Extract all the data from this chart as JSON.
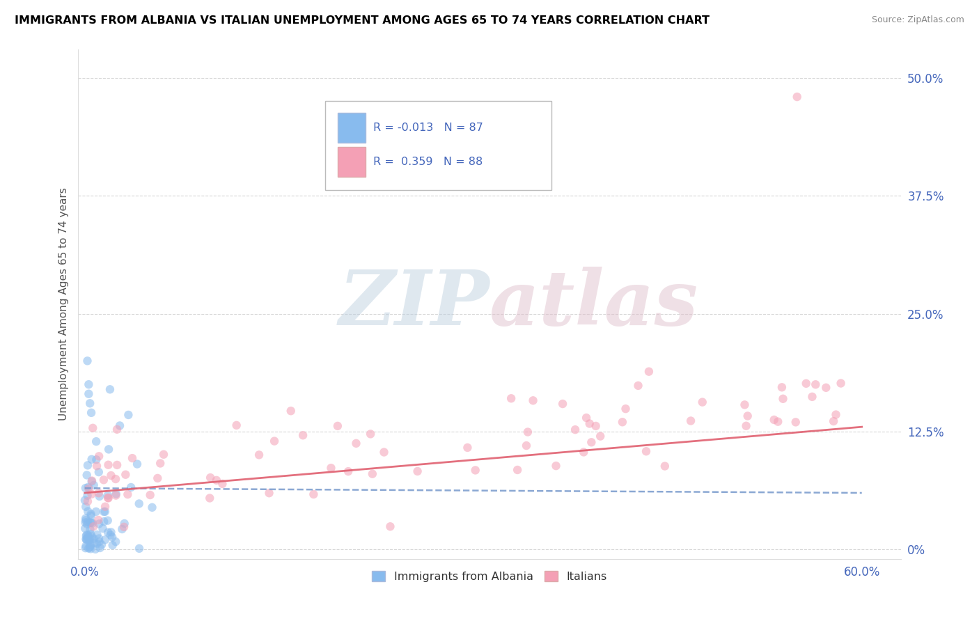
{
  "title": "IMMIGRANTS FROM ALBANIA VS ITALIAN UNEMPLOYMENT AMONG AGES 65 TO 74 YEARS CORRELATION CHART",
  "source": "Source: ZipAtlas.com",
  "ylabel": "Unemployment Among Ages 65 to 74 years",
  "legend_labels": [
    "Immigrants from Albania",
    "Italians"
  ],
  "r_values": [
    -0.013,
    0.359
  ],
  "n_values": [
    87,
    88
  ],
  "xlim": [
    -0.005,
    0.63
  ],
  "ylim": [
    -0.01,
    0.53
  ],
  "yticks": [
    0.0,
    0.125,
    0.25,
    0.375,
    0.5
  ],
  "ytick_labels": [
    "0%",
    "12.5%",
    "25.0%",
    "37.5%",
    "50.0%"
  ],
  "xtick_positions": [
    0.0,
    0.6
  ],
  "xtick_labels": [
    "0.0%",
    "60.0%"
  ],
  "blue_color": "#88bbee",
  "pink_color": "#f4a0b5",
  "blue_line_color": "#7799cc",
  "pink_line_color": "#e06070",
  "axis_label_color": "#4466bb",
  "title_color": "#000000",
  "background_color": "#ffffff",
  "grid_color": "#cccccc",
  "scatter_alpha": 0.55,
  "scatter_size": 80,
  "seed": 42
}
